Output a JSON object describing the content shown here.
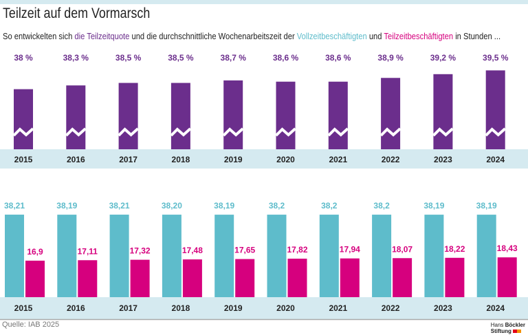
{
  "title": "Teilzeit auf dem Vormarsch",
  "subtitle": {
    "p1": "So entwickelten sich ",
    "p2": "die Teilzeitquote",
    "p3": " und die durchschnittliche Wochenarbeitszeit der ",
    "p4": "Vollzeitbeschäftigten",
    "p5": " und ",
    "p6": "Teilzeitbeschäftigten",
    "p7": " in Stunden ..."
  },
  "source": "Quelle: IAB 2025",
  "logo": {
    "line1a": "Hans ",
    "line1b": "Böckler",
    "line2": "Stiftung"
  },
  "colors": {
    "purple": "#6b2e8c",
    "teal": "#5ebccb",
    "pink": "#d6007e",
    "band": "#d5eaf0",
    "logo_red": "#e2001a",
    "logo_orange": "#f39200"
  },
  "chart_data": [
    {
      "type": "bar",
      "title": "die Teilzeitquote",
      "categories": [
        "2015",
        "2016",
        "2017",
        "2018",
        "2019",
        "2020",
        "2021",
        "2022",
        "2023",
        "2024"
      ],
      "values": [
        38,
        38.3,
        38.5,
        38.5,
        38.7,
        38.6,
        38.6,
        38.9,
        39.2,
        39.5
      ],
      "labels": [
        "38 %",
        "38,3 %",
        "38,5 %",
        "38,5 %",
        "38,7 %",
        "38,6 %",
        "38,6 %",
        "38,9 %",
        "39,2 %",
        "39,5 %"
      ],
      "unit": "%",
      "axis_break": true
    },
    {
      "type": "bar",
      "categories": [
        "2015",
        "2016",
        "2017",
        "2018",
        "2019",
        "2020",
        "2021",
        "2022",
        "2023",
        "2024"
      ],
      "series": [
        {
          "name": "Vollzeitbeschäftigten",
          "values": [
            38.21,
            38.19,
            38.21,
            38.2,
            38.19,
            38.2,
            38.2,
            38.2,
            38.19,
            38.19
          ],
          "labels": [
            "38,21",
            "38,19",
            "38,21",
            "38,20",
            "38,19",
            "38,2",
            "38,2",
            "38,2",
            "38,19",
            "38,19"
          ]
        },
        {
          "name": "Teilzeitbeschäftigten",
          "values": [
            16.9,
            17.11,
            17.32,
            17.48,
            17.65,
            17.82,
            17.94,
            18.07,
            18.22,
            18.43
          ],
          "labels": [
            "16,9",
            "17,11",
            "17,32",
            "17,48",
            "17,65",
            "17,82",
            "17,94",
            "18,07",
            "18,22",
            "18,43"
          ]
        }
      ]
    }
  ]
}
